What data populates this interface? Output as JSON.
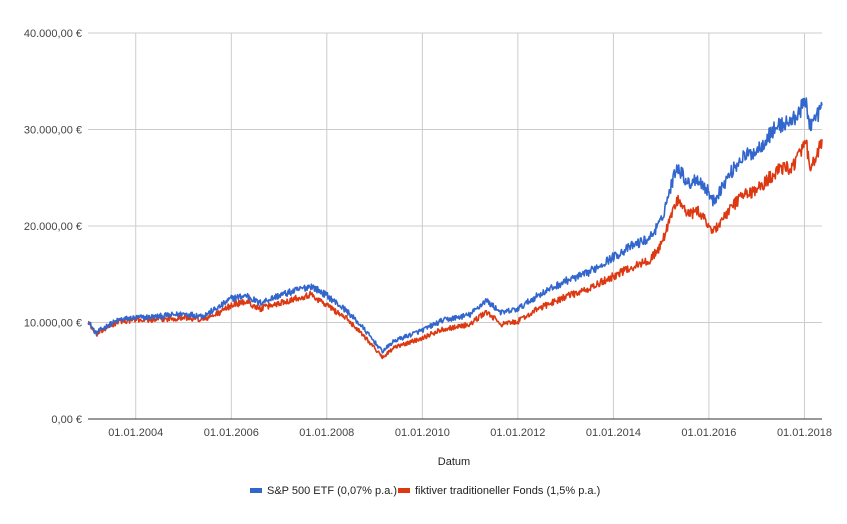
{
  "chart_data": {
    "type": "line",
    "title": "",
    "xlabel": "Datum",
    "ylabel": "",
    "xlim": [
      "2003-01-01",
      "2018-05-15"
    ],
    "ylim": [
      0,
      40000
    ],
    "grid": true,
    "legend_position": "bottom",
    "y_ticks": [
      {
        "value": 0,
        "label": "0,00 €"
      },
      {
        "value": 10000,
        "label": "10.000,00 €"
      },
      {
        "value": 20000,
        "label": "20.000,00 €"
      },
      {
        "value": 30000,
        "label": "30.000,00 €"
      },
      {
        "value": 40000,
        "label": "40.000,00 €"
      }
    ],
    "x_ticks": [
      {
        "value": "2004-01-01",
        "label": "01.01.2004"
      },
      {
        "value": "2006-01-01",
        "label": "01.01.2006"
      },
      {
        "value": "2008-01-01",
        "label": "01.01.2008"
      },
      {
        "value": "2010-01-01",
        "label": "01.01.2010"
      },
      {
        "value": "2012-01-01",
        "label": "01.01.2012"
      },
      {
        "value": "2014-01-01",
        "label": "01.01.2014"
      },
      {
        "value": "2016-01-01",
        "label": "01.01.2016"
      },
      {
        "value": "2018-01-01",
        "label": "01.01.2018"
      }
    ],
    "x": [
      "2003-01-01",
      "2003-03-01",
      "2003-06-01",
      "2003-09-01",
      "2004-01-01",
      "2004-06-01",
      "2005-01-01",
      "2005-06-01",
      "2005-10-01",
      "2006-01-01",
      "2006-05-01",
      "2006-08-01",
      "2007-01-01",
      "2007-06-01",
      "2007-09-01",
      "2008-01-01",
      "2008-06-01",
      "2008-10-01",
      "2009-03-01",
      "2009-06-01",
      "2010-01-01",
      "2010-06-01",
      "2011-01-01",
      "2011-05-01",
      "2011-09-01",
      "2012-01-01",
      "2012-06-01",
      "2013-01-01",
      "2013-06-01",
      "2014-01-01",
      "2014-06-01",
      "2014-10-01",
      "2015-01-01",
      "2015-05-01",
      "2015-08-01",
      "2015-10-01",
      "2016-01-01",
      "2016-02-01",
      "2016-06-01",
      "2016-09-01",
      "2017-01-01",
      "2017-06-01",
      "2017-10-01",
      "2018-01-15",
      "2018-02-08",
      "2018-04-01",
      "2018-05-15"
    ],
    "series": [
      {
        "name": "S&P 500 ETF (0,07% p.a.)",
        "color": "#3366cc",
        "values": [
          10200,
          8900,
          9700,
          10300,
          10500,
          10600,
          10900,
          10700,
          11600,
          12500,
          12800,
          12000,
          12800,
          13400,
          13800,
          12800,
          11200,
          9500,
          7000,
          8100,
          9200,
          10200,
          10800,
          12300,
          11000,
          11400,
          12800,
          14300,
          15000,
          16800,
          18000,
          18700,
          20500,
          26300,
          24300,
          25000,
          23500,
          22500,
          25200,
          27000,
          27800,
          30300,
          30900,
          32900,
          30500,
          31200,
          32500
        ]
      },
      {
        "name": "fiktiver traditioneller Fonds (1,5% p.a.)",
        "color": "#dc3912",
        "values": [
          10200,
          8700,
          9500,
          10100,
          10300,
          10300,
          10500,
          10300,
          11000,
          11800,
          12200,
          11400,
          12000,
          12600,
          12900,
          11800,
          10400,
          8800,
          6400,
          7400,
          8400,
          9300,
          9800,
          11100,
          9800,
          10100,
          11400,
          12700,
          13300,
          14800,
          15800,
          16400,
          18000,
          22800,
          21100,
          21600,
          20200,
          19400,
          21500,
          23100,
          23700,
          25700,
          26200,
          28600,
          26000,
          26800,
          29000
        ]
      }
    ]
  }
}
